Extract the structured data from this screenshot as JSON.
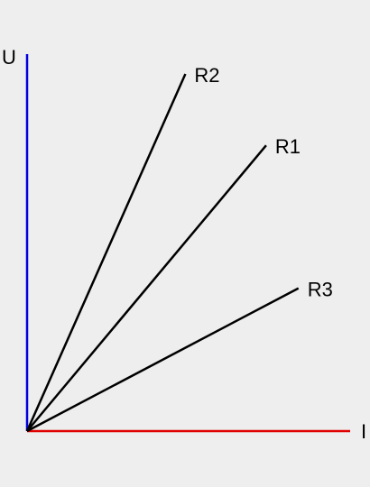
{
  "chart_data": {
    "type": "line",
    "xlabel": "I",
    "ylabel": "U",
    "xlim": [
      0,
      100
    ],
    "ylim": [
      0,
      100
    ],
    "grid": false,
    "series": [
      {
        "name": "R2",
        "x": [
          0,
          49
        ],
        "y": [
          0,
          100
        ]
      },
      {
        "name": "R1",
        "x": [
          0,
          74
        ],
        "y": [
          0,
          80
        ]
      },
      {
        "name": "R3",
        "x": [
          0,
          84
        ],
        "y": [
          0,
          40
        ]
      }
    ],
    "colors": {
      "x_axis": "#e00000",
      "y_axis": "#0000e0",
      "lines": "#000000"
    }
  }
}
